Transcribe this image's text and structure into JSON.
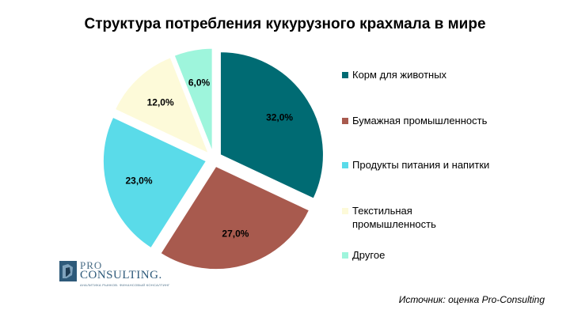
{
  "chart_data": {
    "type": "pie",
    "title": "Структура потребления кукурузного крахмала в мире",
    "categories": [
      "Корм для животных",
      "Бумажная промышленность",
      "Продукты питания и напитки",
      "Текстильная промышленность",
      "Другое"
    ],
    "values": [
      32.0,
      27.0,
      23.0,
      12.0,
      6.0
    ],
    "value_labels": [
      "32,0%",
      "27,0%",
      "23,0%",
      "12,0%",
      "6,0%"
    ],
    "colors": [
      "#006b73",
      "#a85a4e",
      "#5adbe9",
      "#fdfad9",
      "#9ef5dc"
    ],
    "legend_placement": "right",
    "exploded": true
  },
  "legend_lines": [
    [
      "Корм для животных"
    ],
    [
      "Бумажная промышленность"
    ],
    [
      "Продукты питания и напитки"
    ],
    [
      "Текстильная",
      "промышленность"
    ],
    [
      "Другое"
    ]
  ],
  "logo": {
    "line1": "PRO",
    "line2": "CONSULTING.",
    "tagline": "АНАЛИТИКА РЫНКОВ. ФИНАНСОВЫЙ КОНСАЛТИНГ"
  },
  "source": "Источник: оценка Pro-Consulting"
}
